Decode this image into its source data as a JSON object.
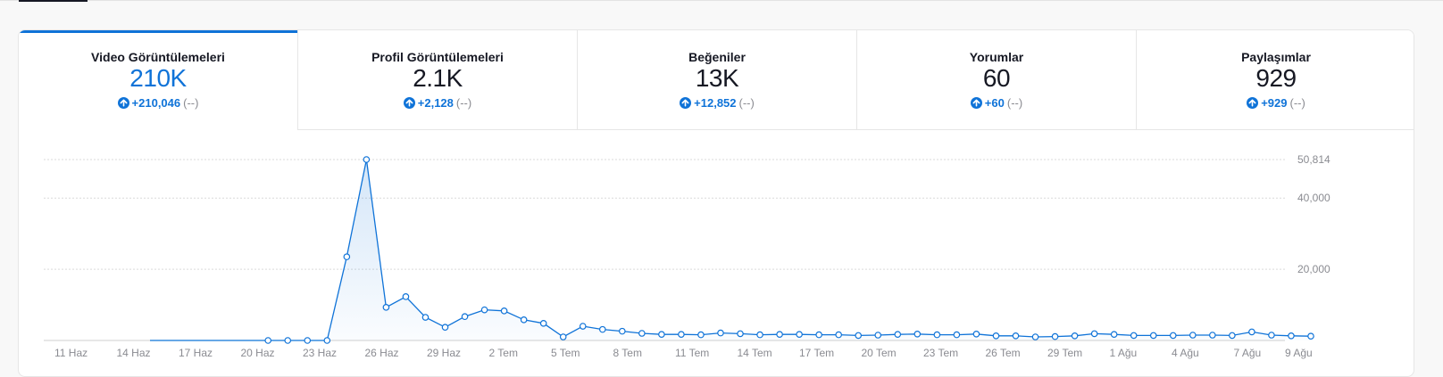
{
  "tabs": [
    {
      "label": "Video Görüntülemeleri",
      "value": "210K",
      "delta": "+210,046",
      "prev": "(--)"
    },
    {
      "label": "Profil Görüntülemeleri",
      "value": "2.1K",
      "delta": "+2,128",
      "prev": "(--)"
    },
    {
      "label": "Beğeniler",
      "value": "13K",
      "delta": "+12,852",
      "prev": "(--)"
    },
    {
      "label": "Yorumlar",
      "value": "60",
      "delta": "+60",
      "prev": "(--)"
    },
    {
      "label": "Paylaşımlar",
      "value": "929",
      "delta": "+929",
      "prev": "(--)"
    }
  ],
  "colors": {
    "accent": "#0f73d8",
    "text": "#161823",
    "muted": "#8a8b91"
  },
  "icons": {
    "delta": "arrow-up-circle-icon"
  },
  "chart_data": {
    "type": "area",
    "series_color": "#0f73d8",
    "y_ticks": [
      "50,814",
      "40,000",
      "20,000"
    ],
    "y_tick_values": [
      50814,
      40000,
      20000
    ],
    "ylim": [
      0,
      50814
    ],
    "grid": true,
    "x_ticks": [
      "11 Haz",
      "14 Haz",
      "17 Haz",
      "20 Haz",
      "23 Haz",
      "26 Haz",
      "29 Haz",
      "2 Tem",
      "5 Tem",
      "8 Tem",
      "11 Tem",
      "14 Tem",
      "17 Tem",
      "20 Tem",
      "23 Tem",
      "26 Tem",
      "29 Tem",
      "1 Ağu",
      "4 Ağu",
      "7 Ağu",
      "9 Ağu"
    ],
    "values": [
      0,
      0,
      0,
      0,
      0,
      0,
      0,
      0,
      0,
      0,
      23500,
      50814,
      9300,
      12300,
      6500,
      3700,
      6700,
      8600,
      8300,
      5800,
      4800,
      1000,
      4000,
      3100,
      2600,
      2000,
      1700,
      1700,
      1600,
      2100,
      1900,
      1600,
      1700,
      1700,
      1600,
      1600,
      1400,
      1500,
      1700,
      1800,
      1600,
      1600,
      1800,
      1300,
      1300,
      1000,
      1100,
      1300,
      1900,
      1700,
      1400,
      1400,
      1400,
      1500,
      1500,
      1400,
      2400,
      1500,
      1300,
      1200
    ]
  }
}
